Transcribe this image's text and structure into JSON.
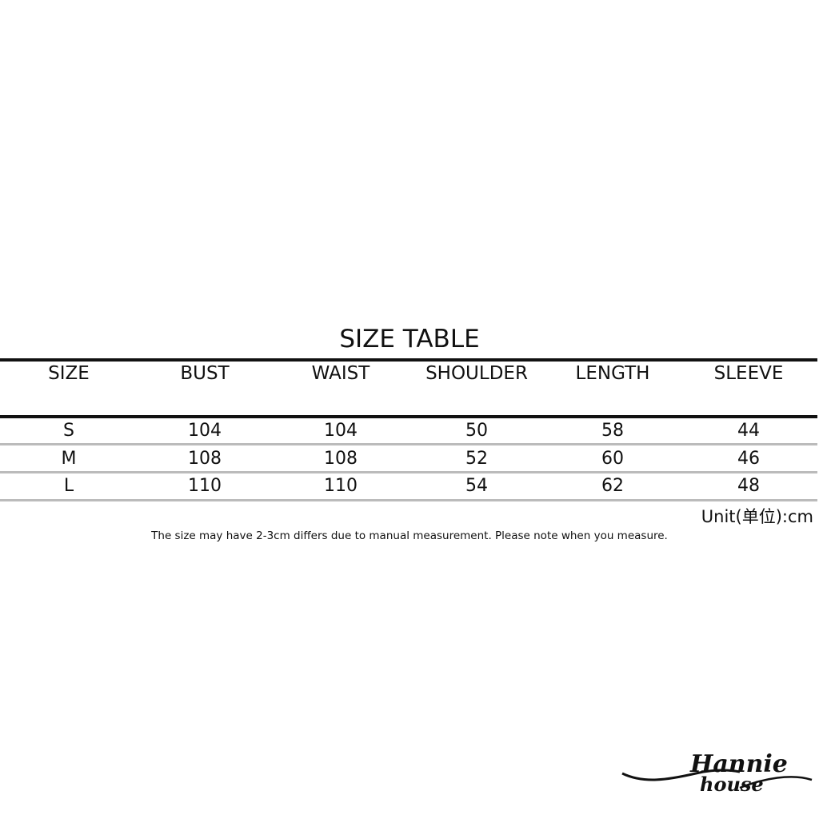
{
  "title": "SIZE TABLE",
  "headers": [
    "SIZE",
    "BUST",
    "WAIST",
    "SHOULDER",
    "LENGTH",
    "SLEEVE"
  ],
  "rows": [
    [
      "S",
      "104",
      "104",
      "50",
      "58",
      "44"
    ],
    [
      "M",
      "108",
      "108",
      "52",
      "60",
      "46"
    ],
    [
      "L",
      "110",
      "110",
      "54",
      "62",
      "48"
    ]
  ],
  "unit": "Unit(单位):cm",
  "note": "The size may have 2-3cm differs due to manual measurement. Please note when you measure.",
  "logo": "Hannie house"
}
